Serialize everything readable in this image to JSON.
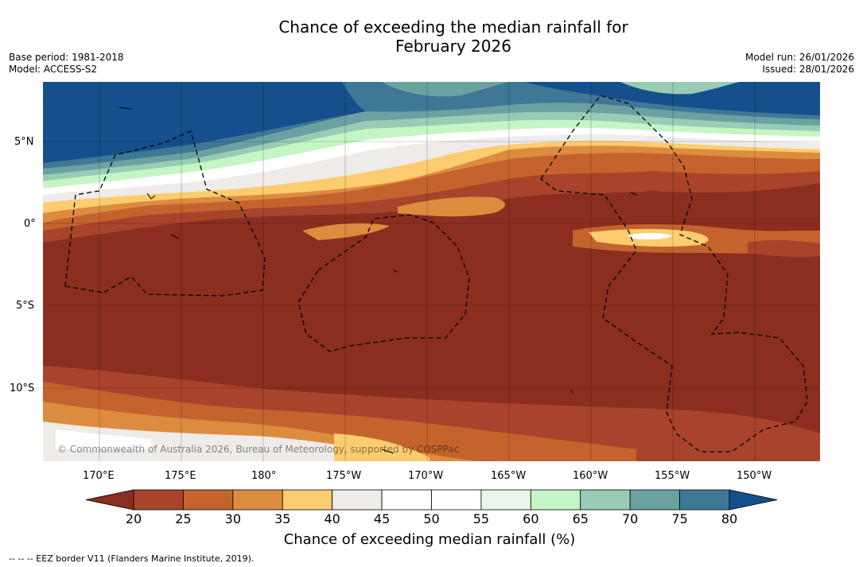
{
  "title_line1": "Chance of exceeding the median rainfall for",
  "title_line2": "February 2026",
  "base_period": "Base period: 1981-2018",
  "model": "Model: ACCESS-S2",
  "model_run": "Model run: 26/01/2026",
  "issued": "Issued: 28/01/2026",
  "copyright": "© Commonwealth of Australia 2026, Bureau of Meteorology, supported by COSPPac",
  "lat_labels": [
    "5°N",
    "0°",
    "5°S",
    "10°S"
  ],
  "lon_labels": [
    "170°E",
    "175°E",
    "180°",
    "175°W",
    "170°W",
    "165°W",
    "160°W",
    "155°W",
    "150°W"
  ],
  "colorbar": {
    "ticks": [
      "20",
      "25",
      "30",
      "35",
      "40",
      "45",
      "50",
      "55",
      "60",
      "65",
      "70",
      "75",
      "80"
    ],
    "colors": [
      "#8b2e1f",
      "#a8442b",
      "#c4632e",
      "#dd8c3f",
      "#fccc6e",
      "#eeebe8",
      "#ffffff",
      "#ffffff",
      "#eaf5ea",
      "#c5f5c5",
      "#98ccb4",
      "#6ca1a1",
      "#3f7796",
      "#154f8c"
    ],
    "label": "Chance of exceeding median rainfall (%)"
  },
  "legend_note": "--  --  -- EEZ border V11 (Flanders Marine Institute, 2019)."
}
